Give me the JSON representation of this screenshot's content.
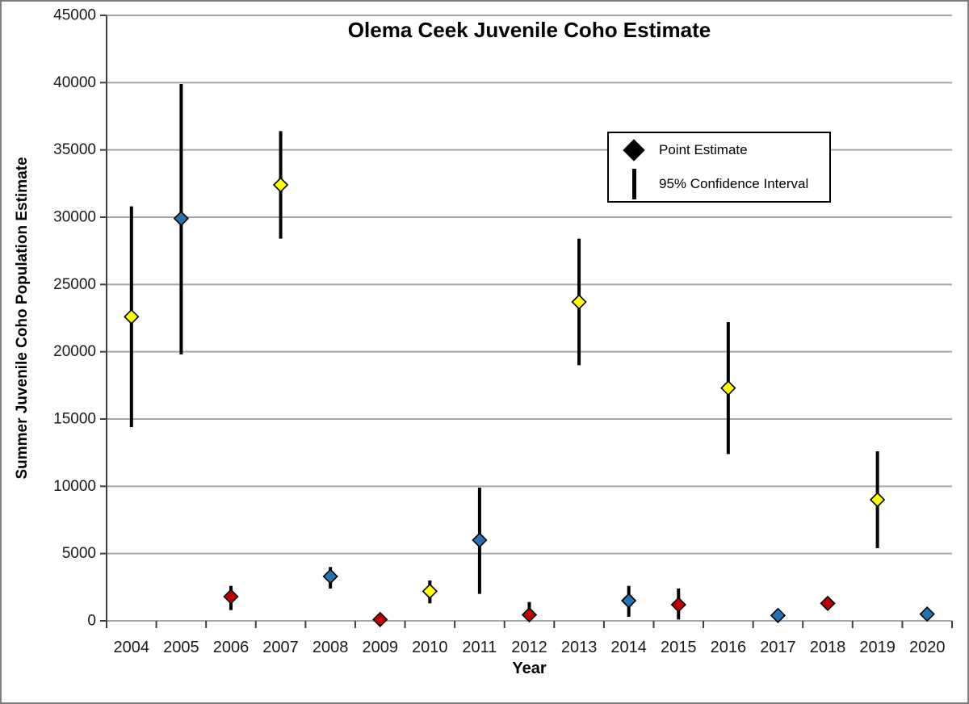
{
  "legend": {
    "point_label": "Point Estimate",
    "ci_label": "95% Confidence Interval"
  },
  "colors": {
    "yellow": "#FFFF00",
    "blue": "#2272B6",
    "red": "#C00000",
    "marker_outline": "#000000",
    "error_bar": "#000000",
    "gridline": "#A6A6A6",
    "axis": "#3F3F3F",
    "tick_label": "#1A1A1A"
  },
  "chart_data": {
    "type": "scatter",
    "title": "Olema Ceek Juvenile Coho Estimate",
    "xlabel": "Year",
    "ylabel": "Summer Juvenile Coho Population Estimate",
    "ylim": [
      0,
      45000
    ],
    "ytick_step": 5000,
    "grid": "horizontal",
    "legend_position": "upper-right-inside",
    "categories": [
      2004,
      2005,
      2006,
      2007,
      2008,
      2009,
      2010,
      2011,
      2012,
      2013,
      2014,
      2015,
      2016,
      2017,
      2018,
      2019,
      2020
    ],
    "series": [
      {
        "name": "Point Estimate",
        "marker": "diamond",
        "error_bars": "95% Confidence Interval",
        "points": [
          {
            "year": 2004,
            "estimate": 22600,
            "ci_low": 14400,
            "ci_high": 30800,
            "color": "yellow"
          },
          {
            "year": 2005,
            "estimate": 29900,
            "ci_low": 19800,
            "ci_high": 39900,
            "color": "blue"
          },
          {
            "year": 2006,
            "estimate": 1800,
            "ci_low": 800,
            "ci_high": 2600,
            "color": "red"
          },
          {
            "year": 2007,
            "estimate": 32400,
            "ci_low": 28400,
            "ci_high": 36400,
            "color": "yellow"
          },
          {
            "year": 2008,
            "estimate": 3300,
            "ci_low": 2400,
            "ci_high": 4000,
            "color": "blue"
          },
          {
            "year": 2009,
            "estimate": 100,
            "ci_low": 0,
            "ci_high": 400,
            "color": "red"
          },
          {
            "year": 2010,
            "estimate": 2200,
            "ci_low": 1300,
            "ci_high": 3000,
            "color": "yellow"
          },
          {
            "year": 2011,
            "estimate": 6000,
            "ci_low": 2000,
            "ci_high": 9900,
            "color": "blue"
          },
          {
            "year": 2012,
            "estimate": 450,
            "ci_low": 0,
            "ci_high": 1400,
            "color": "red"
          },
          {
            "year": 2013,
            "estimate": 23700,
            "ci_low": 19000,
            "ci_high": 28400,
            "color": "yellow"
          },
          {
            "year": 2014,
            "estimate": 1500,
            "ci_low": 300,
            "ci_high": 2600,
            "color": "blue"
          },
          {
            "year": 2015,
            "estimate": 1200,
            "ci_low": 100,
            "ci_high": 2400,
            "color": "red"
          },
          {
            "year": 2016,
            "estimate": 17300,
            "ci_low": 12400,
            "ci_high": 22200,
            "color": "yellow"
          },
          {
            "year": 2017,
            "estimate": 400,
            "ci_low": null,
            "ci_high": null,
            "color": "blue"
          },
          {
            "year": 2018,
            "estimate": 1300,
            "ci_low": null,
            "ci_high": null,
            "color": "red"
          },
          {
            "year": 2019,
            "estimate": 9000,
            "ci_low": 5400,
            "ci_high": 12600,
            "color": "yellow"
          },
          {
            "year": 2020,
            "estimate": 500,
            "ci_low": null,
            "ci_high": null,
            "color": "blue"
          }
        ]
      }
    ]
  }
}
